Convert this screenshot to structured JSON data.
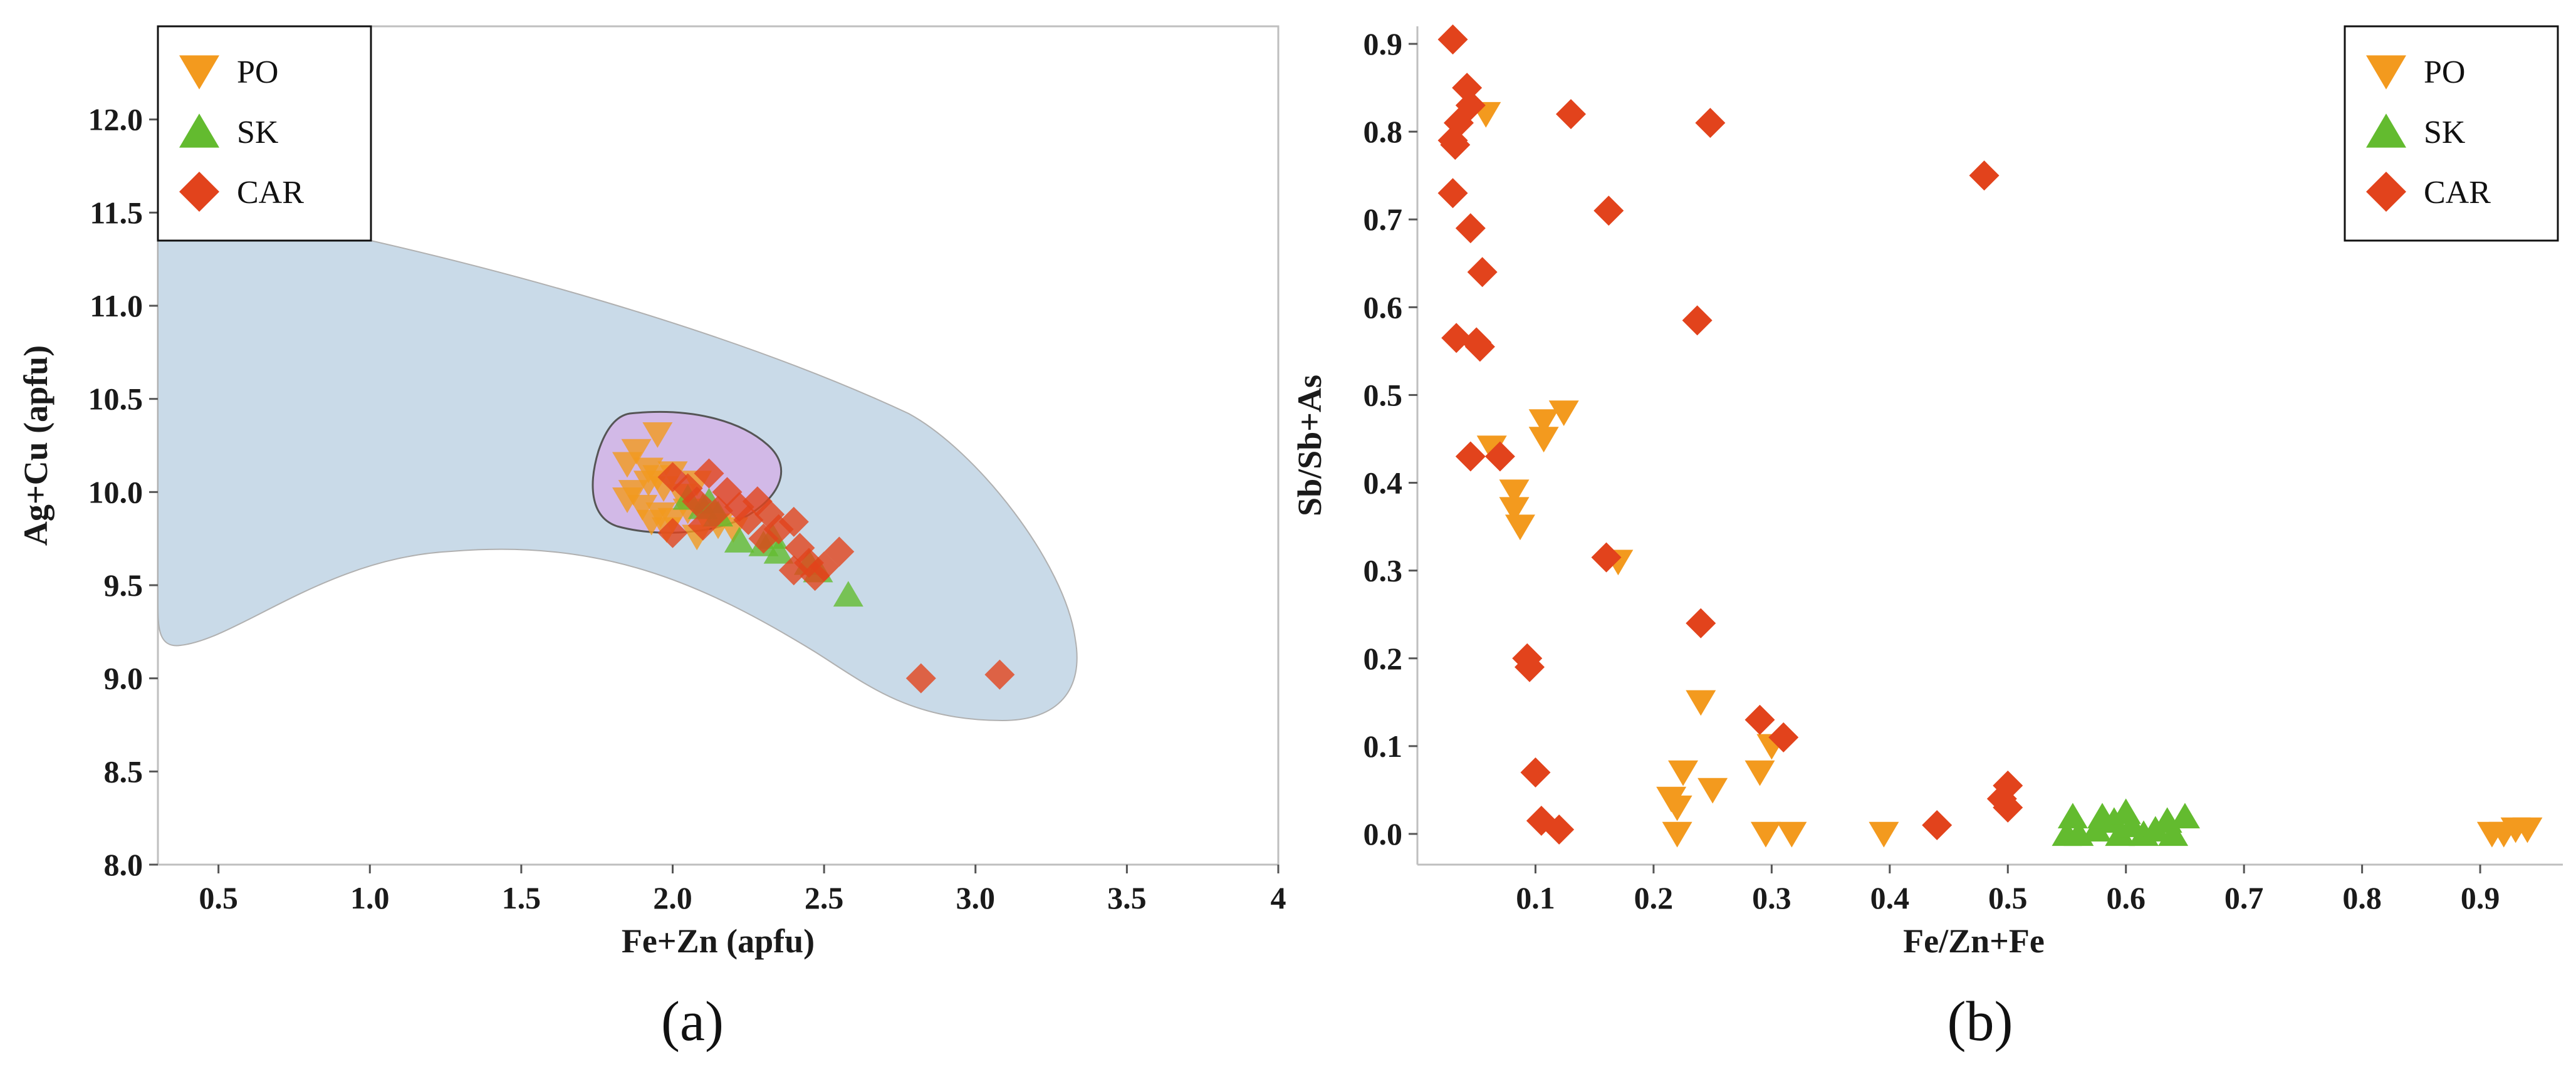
{
  "colors": {
    "PO": "#F39A1E",
    "SK": "#63BB2F",
    "CAR": "#E2431C",
    "region_outer": "#C9DAE8",
    "region_inner": "#D3B3E6"
  },
  "chart_data": [
    {
      "panel": "(a)",
      "type": "scatter",
      "xlabel": "Fe+Zn (apfu)",
      "ylabel": "Ag+Cu (apfu)",
      "xlim": [
        0.3,
        4.0
      ],
      "ylim": [
        8.0,
        12.5
      ],
      "xticks": [
        "0.5",
        "1.0",
        "1.5",
        "2.0",
        "2.5",
        "3.0",
        "3.5",
        "4"
      ],
      "yticks": [
        "8.0",
        "8.5",
        "9.0",
        "9.5",
        "10.0",
        "10.5",
        "11.0",
        "11.5",
        "12.0"
      ],
      "legend": "top-left",
      "grid": false,
      "series": [
        {
          "name": "PO",
          "marker": "triangle-down",
          "points": [
            [
              1.95,
              10.31
            ],
            [
              1.88,
              10.22
            ],
            [
              1.85,
              10.15
            ],
            [
              1.92,
              10.12
            ],
            [
              1.95,
              10.08
            ],
            [
              2.0,
              10.1
            ],
            [
              2.08,
              10.05
            ],
            [
              1.87,
              10.0
            ],
            [
              1.92,
              10.05
            ],
            [
              1.97,
              10.02
            ],
            [
              2.03,
              9.98
            ],
            [
              1.85,
              9.96
            ],
            [
              1.9,
              9.92
            ],
            [
              1.96,
              9.88
            ],
            [
              2.0,
              9.85
            ],
            [
              2.1,
              9.88
            ],
            [
              2.15,
              9.82
            ],
            [
              1.98,
              9.8
            ],
            [
              2.08,
              9.76
            ],
            [
              2.2,
              9.8
            ],
            [
              1.93,
              9.84
            ],
            [
              2.05,
              9.9
            ]
          ]
        },
        {
          "name": "SK",
          "marker": "triangle-up",
          "points": [
            [
              2.05,
              9.97
            ],
            [
              2.1,
              9.92
            ],
            [
              2.15,
              9.88
            ],
            [
              2.22,
              9.74
            ],
            [
              2.3,
              9.72
            ],
            [
              2.33,
              9.76
            ],
            [
              2.35,
              9.68
            ],
            [
              2.45,
              9.62
            ],
            [
              2.48,
              9.58
            ],
            [
              2.58,
              9.45
            ],
            [
              2.12,
              9.95
            ]
          ]
        },
        {
          "name": "CAR",
          "marker": "diamond",
          "points": [
            [
              2.0,
              10.08
            ],
            [
              2.05,
              10.02
            ],
            [
              2.12,
              10.1
            ],
            [
              2.18,
              10.0
            ],
            [
              2.08,
              9.95
            ],
            [
              2.22,
              9.92
            ],
            [
              2.28,
              9.95
            ],
            [
              2.32,
              9.88
            ],
            [
              2.35,
              9.8
            ],
            [
              2.4,
              9.84
            ],
            [
              2.42,
              9.7
            ],
            [
              2.45,
              9.62
            ],
            [
              2.4,
              9.58
            ],
            [
              2.5,
              9.6
            ],
            [
              2.55,
              9.68
            ],
            [
              2.0,
              9.78
            ],
            [
              2.1,
              9.82
            ],
            [
              2.25,
              9.85
            ],
            [
              2.15,
              9.9
            ],
            [
              2.3,
              9.75
            ],
            [
              2.47,
              9.55
            ],
            [
              2.82,
              9.0
            ],
            [
              3.08,
              9.02
            ]
          ]
        }
      ]
    },
    {
      "panel": "(b)",
      "type": "scatter",
      "xlabel": "Fe/Zn+Fe",
      "ylabel": "Sb/Sb+As",
      "xlim": [
        0.0,
        0.97
      ],
      "ylim": [
        -0.035,
        0.92
      ],
      "xticks": [
        "0.1",
        "0.2",
        "0.3",
        "0.4",
        "0.5",
        "0.6",
        "0.7",
        "0.8",
        "0.9"
      ],
      "yticks": [
        "0.0",
        "0.1",
        "0.2",
        "0.3",
        "0.4",
        "0.5",
        "0.6",
        "0.7",
        "0.8",
        "0.9"
      ],
      "legend": "top-right",
      "grid": false,
      "series": [
        {
          "name": "PO",
          "marker": "triangle-down",
          "points": [
            [
              0.058,
              0.82
            ],
            [
              0.063,
              0.44
            ],
            [
              0.107,
              0.47
            ],
            [
              0.107,
              0.45
            ],
            [
              0.124,
              0.48
            ],
            [
              0.082,
              0.39
            ],
            [
              0.082,
              0.37
            ],
            [
              0.087,
              0.35
            ],
            [
              0.17,
              0.31
            ],
            [
              0.24,
              0.15
            ],
            [
              0.225,
              0.07
            ],
            [
              0.215,
              0.04
            ],
            [
              0.22,
              0.03
            ],
            [
              0.25,
              0.05
            ],
            [
              0.22,
              0.0
            ],
            [
              0.29,
              0.07
            ],
            [
              0.3,
              0.1
            ],
            [
              0.295,
              0.0
            ],
            [
              0.317,
              0.0
            ],
            [
              0.395,
              0.0
            ],
            [
              0.91,
              0.0
            ],
            [
              0.92,
              0.0
            ],
            [
              0.93,
              0.005
            ],
            [
              0.94,
              0.005
            ]
          ]
        },
        {
          "name": "SK",
          "marker": "triangle-up",
          "points": [
            [
              0.55,
              0.0
            ],
            [
              0.555,
              0.02
            ],
            [
              0.56,
              0.0
            ],
            [
              0.575,
              0.005
            ],
            [
              0.58,
              0.02
            ],
            [
              0.59,
              0.015
            ],
            [
              0.595,
              0.0
            ],
            [
              0.6,
              0.025
            ],
            [
              0.605,
              0.01
            ],
            [
              0.615,
              0.0
            ],
            [
              0.625,
              0.005
            ],
            [
              0.635,
              0.015
            ],
            [
              0.64,
              0.0
            ],
            [
              0.65,
              0.02
            ]
          ]
        },
        {
          "name": "CAR",
          "marker": "diamond",
          "points": [
            [
              0.03,
              0.905
            ],
            [
              0.042,
              0.85
            ],
            [
              0.045,
              0.83
            ],
            [
              0.035,
              0.81
            ],
            [
              0.03,
              0.79
            ],
            [
              0.032,
              0.785
            ],
            [
              0.13,
              0.82
            ],
            [
              0.248,
              0.81
            ],
            [
              0.48,
              0.75
            ],
            [
              0.03,
              0.73
            ],
            [
              0.045,
              0.69
            ],
            [
              0.162,
              0.71
            ],
            [
              0.055,
              0.64
            ],
            [
              0.033,
              0.565
            ],
            [
              0.05,
              0.56
            ],
            [
              0.053,
              0.555
            ],
            [
              0.237,
              0.585
            ],
            [
              0.045,
              0.43
            ],
            [
              0.07,
              0.43
            ],
            [
              0.16,
              0.315
            ],
            [
              0.24,
              0.24
            ],
            [
              0.093,
              0.2
            ],
            [
              0.095,
              0.19
            ],
            [
              0.29,
              0.13
            ],
            [
              0.31,
              0.11
            ],
            [
              0.1,
              0.07
            ],
            [
              0.105,
              0.015
            ],
            [
              0.12,
              0.005
            ],
            [
              0.44,
              0.01
            ],
            [
              0.495,
              0.04
            ],
            [
              0.5,
              0.055
            ],
            [
              0.5,
              0.03
            ]
          ]
        }
      ]
    }
  ]
}
